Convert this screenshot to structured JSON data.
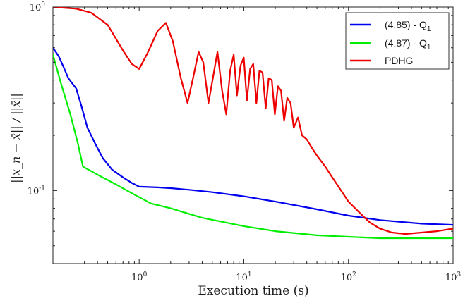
{
  "chart_data": {
    "type": "line",
    "x_scale": "log",
    "y_scale": "log",
    "xlim": [
      0.15,
      1000
    ],
    "ylim": [
      0.04,
      1
    ],
    "grid": false,
    "legend_position": "top-right",
    "xlabel": "Execution time (s)",
    "ylabel": "||x_n − x̄|| / ||x̄||",
    "x_ticks": [
      {
        "value": 1,
        "base": "10",
        "exp": "0"
      },
      {
        "value": 10,
        "base": "10",
        "exp": "1"
      },
      {
        "value": 100,
        "base": "10",
        "exp": "2"
      },
      {
        "value": 1000,
        "base": "10",
        "exp": "3"
      }
    ],
    "y_ticks": [
      {
        "value": 1,
        "base": "10",
        "exp": "0"
      },
      {
        "value": 0.1,
        "base": "10",
        "exp": "-1"
      }
    ],
    "series": [
      {
        "name": "(4.85)  - Q",
        "name_sub": "1",
        "color": "#0000ee",
        "x": [
          0.15,
          0.17,
          0.19,
          0.21,
          0.25,
          0.28,
          0.32,
          0.38,
          0.45,
          0.55,
          0.7,
          0.85,
          1.0,
          1.5,
          2,
          3,
          5,
          10,
          20,
          50,
          100,
          200,
          500,
          1000
        ],
        "y": [
          0.6,
          0.54,
          0.47,
          0.41,
          0.36,
          0.29,
          0.22,
          0.18,
          0.15,
          0.13,
          0.118,
          0.11,
          0.105,
          0.104,
          0.103,
          0.101,
          0.098,
          0.093,
          0.087,
          0.079,
          0.073,
          0.069,
          0.066,
          0.065
        ]
      },
      {
        "name": "(4.87)  - Q",
        "name_sub": "1",
        "color": "#00ee00",
        "x": [
          0.15,
          0.18,
          0.22,
          0.26,
          0.29,
          0.4,
          0.6,
          0.9,
          1.3,
          2,
          4,
          10,
          20,
          50,
          100,
          200,
          500,
          1000
        ],
        "y": [
          0.55,
          0.38,
          0.26,
          0.18,
          0.135,
          0.122,
          0.108,
          0.095,
          0.085,
          0.08,
          0.071,
          0.064,
          0.06,
          0.057,
          0.056,
          0.055,
          0.055,
          0.055
        ]
      },
      {
        "name": "PDHG",
        "color": "#ee0000",
        "x": [
          0.15,
          0.25,
          0.35,
          0.5,
          0.7,
          0.85,
          1.0,
          1.2,
          1.5,
          1.8,
          2.1,
          2.5,
          2.9,
          3.3,
          3.7,
          4.1,
          4.6,
          5.1,
          5.6,
          6.2,
          6.8,
          7.4,
          8.0,
          8.6,
          9.3,
          10,
          10.7,
          11.5,
          12.3,
          13.2,
          14.1,
          15.1,
          16.2,
          17.3,
          18.5,
          19.8,
          21.2,
          22.7,
          24.3,
          26,
          28,
          30,
          33,
          36,
          40,
          45,
          50,
          60,
          70,
          85,
          100,
          130,
          160,
          200,
          260,
          350,
          500,
          700,
          1000
        ],
        "y": [
          1.0,
          0.98,
          0.93,
          0.8,
          0.58,
          0.49,
          0.46,
          0.56,
          0.74,
          0.82,
          0.65,
          0.41,
          0.3,
          0.42,
          0.57,
          0.5,
          0.3,
          0.42,
          0.57,
          0.35,
          0.26,
          0.45,
          0.55,
          0.33,
          0.48,
          0.53,
          0.31,
          0.46,
          0.49,
          0.3,
          0.45,
          0.44,
          0.28,
          0.41,
          0.4,
          0.26,
          0.37,
          0.35,
          0.24,
          0.32,
          0.3,
          0.22,
          0.25,
          0.2,
          0.19,
          0.17,
          0.155,
          0.135,
          0.118,
          0.1,
          0.087,
          0.075,
          0.067,
          0.062,
          0.059,
          0.058,
          0.059,
          0.06,
          0.062
        ]
      }
    ]
  }
}
